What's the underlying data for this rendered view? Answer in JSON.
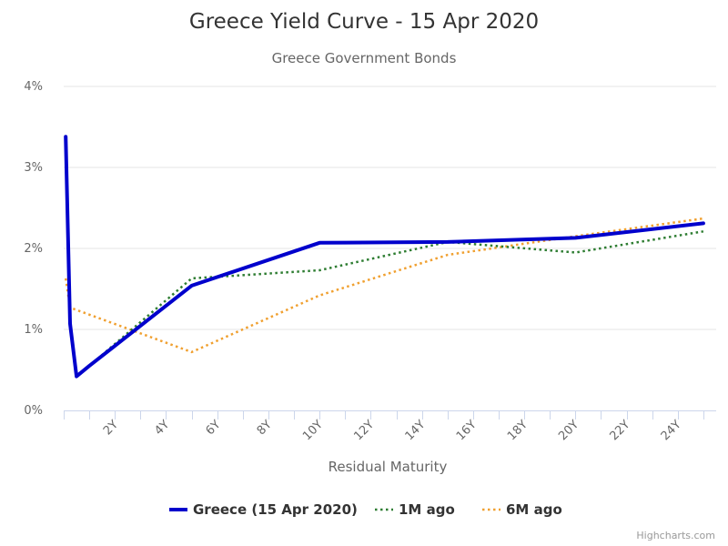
{
  "chart_data": {
    "type": "line",
    "title": "Greece Yield Curve - 15 Apr 2020",
    "subtitle": "Greece Government Bonds",
    "xlabel": "Residual Maturity",
    "ylabel": "",
    "xlim": [
      0,
      25.5
    ],
    "ylim": [
      0,
      4
    ],
    "x_ticks": [
      "2Y",
      "4Y",
      "6Y",
      "8Y",
      "10Y",
      "12Y",
      "14Y",
      "16Y",
      "18Y",
      "20Y",
      "22Y",
      "24Y"
    ],
    "y_ticks": [
      "0%",
      "1%",
      "2%",
      "3%",
      "4%"
    ],
    "grid": true,
    "legend_position": "bottom-center",
    "series": [
      {
        "name": "Greece (15 Apr 2020)",
        "color": "#0000cc",
        "style": "solid",
        "points": [
          [
            0.08,
            3.38
          ],
          [
            0.25,
            1.07
          ],
          [
            0.5,
            0.42
          ],
          [
            1,
            0.55
          ],
          [
            5,
            1.54
          ],
          [
            10,
            2.07
          ],
          [
            15,
            2.08
          ],
          [
            20,
            2.13
          ],
          [
            25,
            2.31
          ]
        ]
      },
      {
        "name": "1M ago",
        "color": "#2e7d32",
        "style": "dotted",
        "points": [
          [
            0.08,
            3.38
          ],
          [
            0.25,
            1.07
          ],
          [
            0.5,
            0.42
          ],
          [
            1,
            0.55
          ],
          [
            5,
            1.63
          ],
          [
            10,
            1.73
          ],
          [
            15,
            2.08
          ],
          [
            20,
            1.95
          ],
          [
            25,
            2.21
          ]
        ]
      },
      {
        "name": "6M ago",
        "color": "#f0a030",
        "style": "dotted",
        "points": [
          [
            0.08,
            1.63
          ],
          [
            0.25,
            1.27
          ],
          [
            5,
            0.72
          ],
          [
            10,
            1.42
          ],
          [
            15,
            1.92
          ],
          [
            20,
            2.15
          ],
          [
            25,
            2.37
          ]
        ]
      }
    ]
  },
  "credits": "Highcharts.com"
}
